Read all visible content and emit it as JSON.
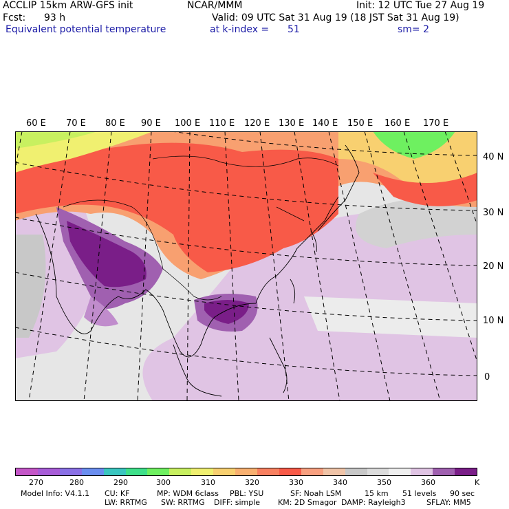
{
  "header": {
    "model": "ACCLIP 15km ARW-GFS init",
    "org": "NCAR/MMM",
    "init": "Init: 12 UTC Tue 27 Aug 19",
    "fcst_label": "Fcst:",
    "fcst_value": "93 h",
    "valid": "Valid: 09 UTC Sat 31 Aug 19 (18 JST Sat 31 Aug 19)",
    "field": "Equivalent potential temperature",
    "level": "at k-index =",
    "level_value": "51",
    "smooth": "sm= 2"
  },
  "map": {
    "lon_labels": [
      "60 E",
      "70 E",
      "80 E",
      "90 E",
      "100 E",
      "110 E",
      "120 E",
      "130 E",
      "140 E",
      "150 E",
      "160 E",
      "170 E"
    ],
    "lat_labels": [
      "40 N",
      "30 N",
      "20 N",
      "10 N",
      "0"
    ]
  },
  "colorbar": {
    "colors": [
      "#c456c8",
      "#a85cd8",
      "#8a70e6",
      "#6a8ef0",
      "#3ac6c0",
      "#3ee08a",
      "#6ef060",
      "#c8f060",
      "#f0f070",
      "#f8d070",
      "#f8b070",
      "#f88060",
      "#f85a48",
      "#f8a080",
      "#f0c4a8",
      "#c8c8c8",
      "#dcdcdc",
      "#f0f0f0",
      "#e0c4e4",
      "#a060b0",
      "#7a1e88"
    ],
    "tick_labels": [
      "270",
      "280",
      "290",
      "300",
      "310",
      "320",
      "330",
      "340",
      "350",
      "360",
      "K"
    ]
  },
  "footer": {
    "line1": [
      "Model Info: V4.1.1",
      "CU: KF",
      "MP: WDM 6class",
      "PBL: YSU",
      "SF: Noah LSM",
      "15 km",
      "51 levels",
      "90 sec"
    ],
    "line2": [
      "LW: RRTMG",
      "SW: RRTMG",
      "DIFF: simple",
      "KM: 2D Smagor",
      "DAMP: Rayleigh3",
      "SFLAY: MM5"
    ]
  }
}
